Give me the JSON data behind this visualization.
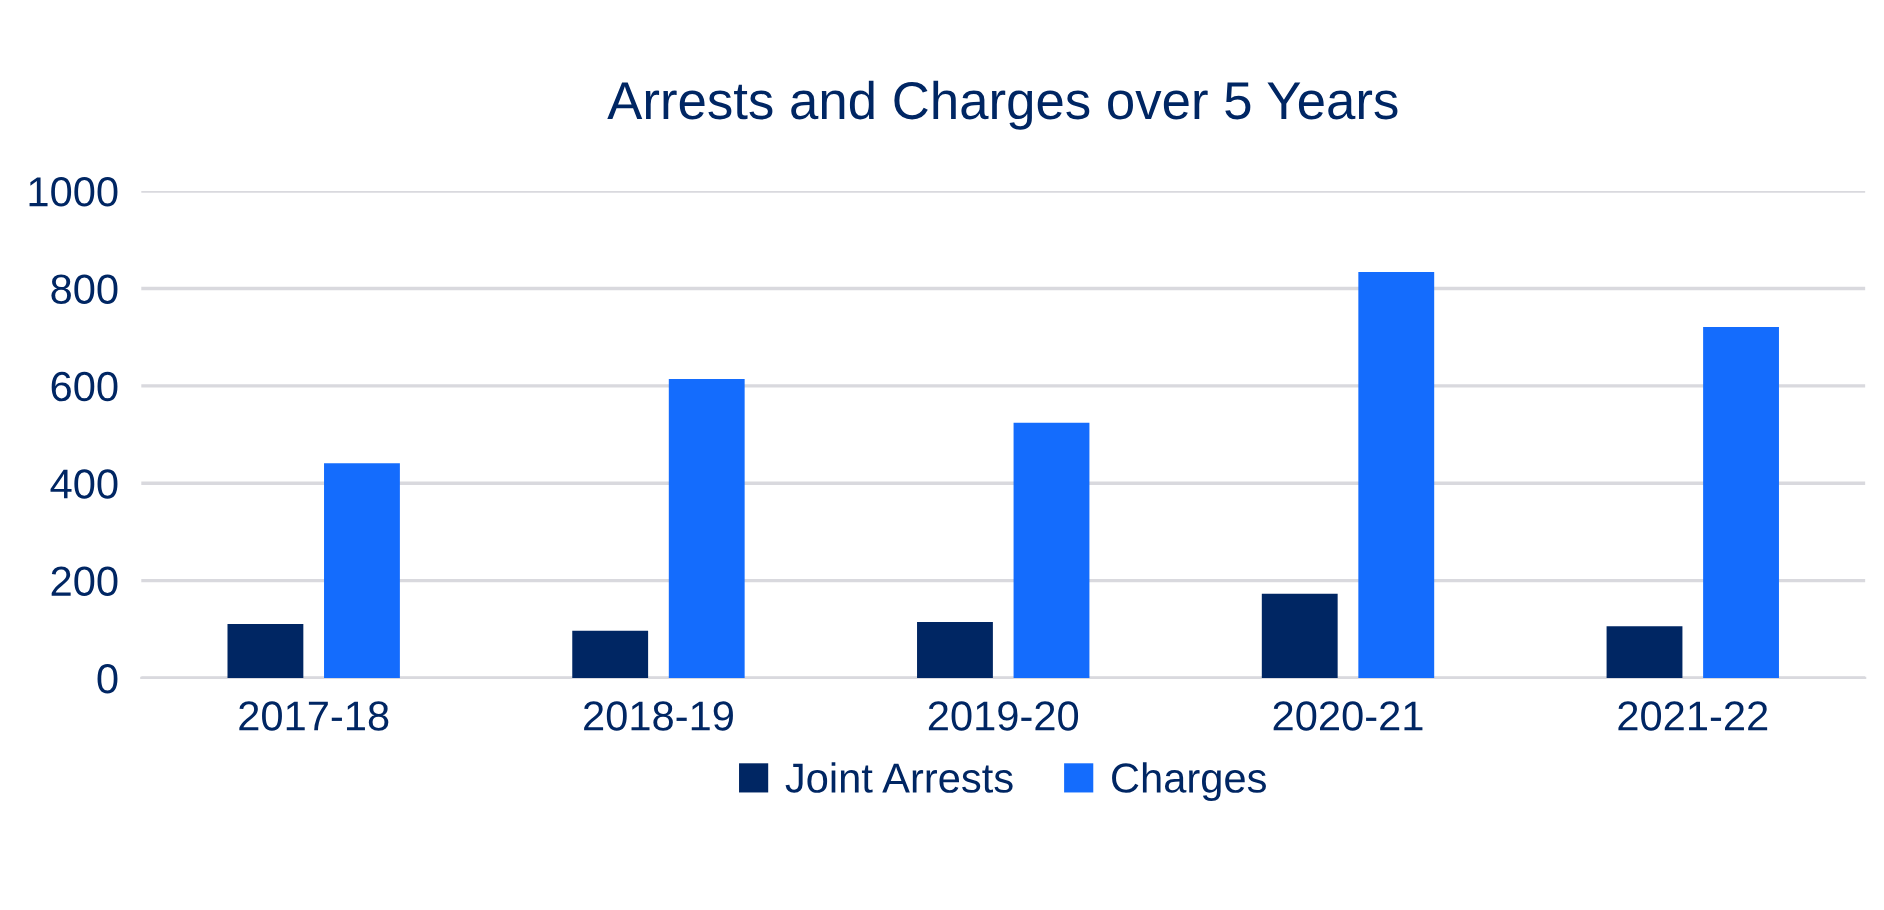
{
  "chart_data": {
    "type": "bar",
    "title": "Arrests and Charges over 5 Years",
    "categories": [
      "2017-18",
      "2018-19",
      "2019-20",
      "2020-21",
      "2021-22"
    ],
    "series": [
      {
        "name": "Joint Arrests",
        "color": "#002663",
        "values": [
          111,
          97,
          115,
          173,
          106
        ]
      },
      {
        "name": "Charges",
        "color": "#146cfd",
        "values": [
          441,
          614,
          524,
          834,
          721
        ]
      }
    ],
    "ylim": [
      0,
      1000
    ],
    "yticks": [
      0,
      200,
      400,
      600,
      800,
      1000
    ],
    "grid": "y",
    "legend": "bottom"
  }
}
